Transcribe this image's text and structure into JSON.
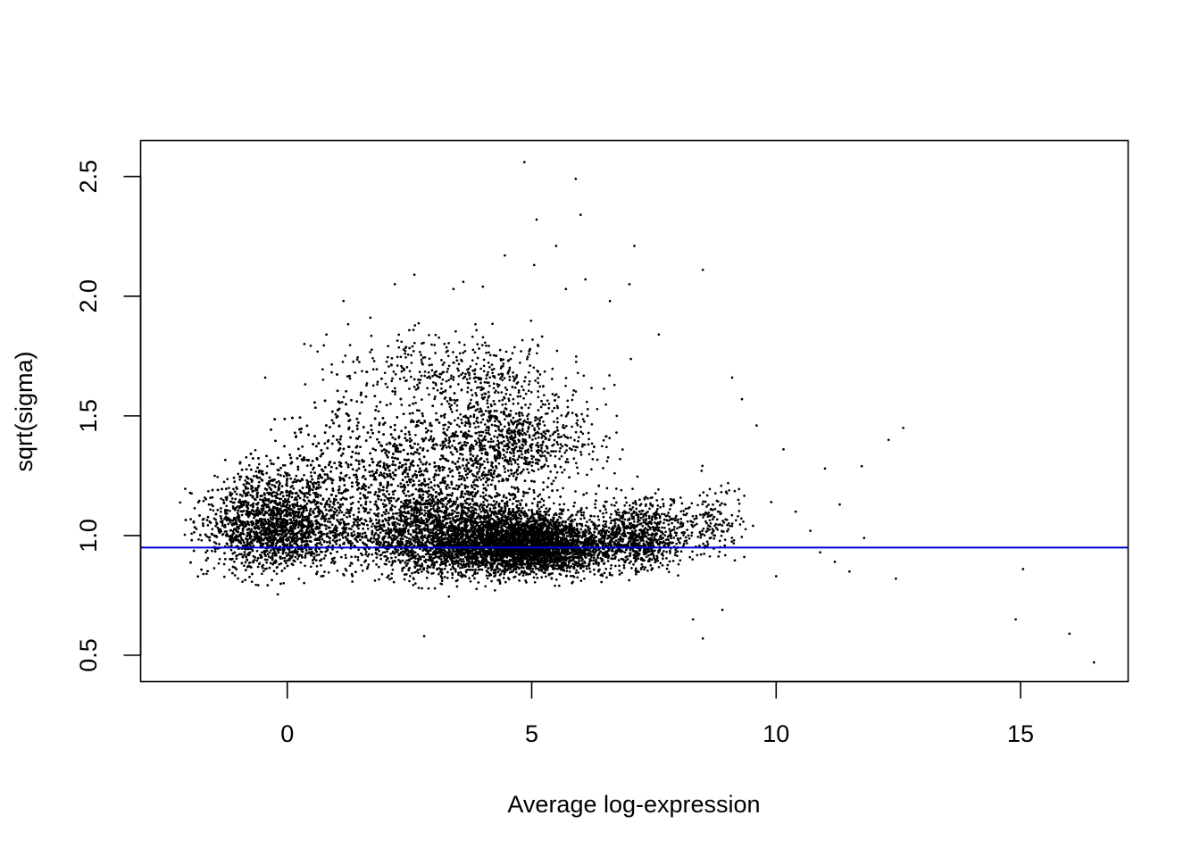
{
  "chart_data": {
    "type": "scatter",
    "title": "",
    "xlabel": "Average log-expression",
    "ylabel": "sqrt(sigma)",
    "xlim": [
      -3.0,
      17.2
    ],
    "ylim": [
      0.39,
      2.65
    ],
    "x_ticks": [
      0,
      5,
      10,
      15
    ],
    "x_tick_labels": [
      "0",
      "5",
      "10",
      "15"
    ],
    "y_ticks": [
      0.5,
      1.0,
      1.5,
      2.0,
      2.5
    ],
    "y_tick_labels": [
      "0.5",
      "1.0",
      "1.5",
      "2.0",
      "2.5"
    ],
    "grid": false,
    "point_color": "#000000",
    "trend_line": {
      "y": 0.95,
      "color": "#0000cd"
    },
    "series": [
      {
        "points": [
          [
            4.85,
            2.56
          ],
          [
            5.9,
            2.49
          ],
          [
            6.0,
            2.34
          ],
          [
            5.1,
            2.32
          ],
          [
            5.5,
            2.21
          ],
          [
            7.1,
            2.21
          ],
          [
            4.45,
            2.17
          ],
          [
            8.5,
            2.11
          ],
          [
            5.05,
            2.13
          ],
          [
            2.6,
            2.09
          ],
          [
            2.2,
            2.05
          ],
          [
            6.1,
            2.07
          ],
          [
            7.0,
            2.05
          ],
          [
            1.15,
            1.98
          ],
          [
            12.6,
            1.45
          ],
          [
            12.3,
            1.4
          ],
          [
            9.6,
            1.46
          ],
          [
            10.15,
            1.36
          ],
          [
            11.0,
            1.28
          ],
          [
            11.75,
            1.29
          ],
          [
            11.3,
            1.13
          ],
          [
            11.5,
            0.85
          ],
          [
            12.45,
            0.82
          ],
          [
            11.2,
            0.89
          ],
          [
            10.9,
            0.93
          ],
          [
            15.05,
            0.86
          ],
          [
            14.9,
            0.65
          ],
          [
            16.0,
            0.59
          ],
          [
            16.5,
            0.47
          ],
          [
            8.5,
            0.57
          ],
          [
            8.3,
            0.65
          ],
          [
            2.8,
            0.58
          ],
          [
            -0.45,
            1.66
          ],
          [
            0.35,
            1.8
          ],
          [
            0.8,
            1.84
          ],
          [
            1.7,
            1.91
          ],
          [
            3.6,
            2.06
          ],
          [
            4.0,
            2.04
          ],
          [
            3.4,
            2.03
          ],
          [
            9.1,
            1.66
          ],
          [
            9.3,
            1.57
          ],
          [
            7.6,
            1.84
          ],
          [
            6.6,
            1.98
          ],
          [
            5.7,
            2.03
          ],
          [
            10.4,
            1.1
          ],
          [
            10.7,
            1.02
          ],
          [
            11.8,
            0.99
          ],
          [
            10.0,
            0.83
          ],
          [
            9.9,
            1.14
          ],
          [
            8.9,
            0.69
          ]
        ]
      }
    ],
    "density_regions": [
      {
        "x_center": 5.0,
        "y_center": 0.92,
        "x_spread": 1.3,
        "y_spread": 0.14,
        "count": 3200
      },
      {
        "x_center": 3.3,
        "y_center": 0.95,
        "x_spread": 1.8,
        "y_spread": 0.2,
        "count": 2600
      },
      {
        "x_center": -0.2,
        "y_center": 0.98,
        "x_spread": 1.3,
        "y_spread": 0.22,
        "count": 2600
      },
      {
        "x_center": 2.2,
        "y_center": 1.2,
        "x_spread": 2.4,
        "y_spread": 0.3,
        "count": 2200
      },
      {
        "x_center": 4.5,
        "y_center": 1.35,
        "x_spread": 1.6,
        "y_spread": 0.22,
        "count": 900
      },
      {
        "x_center": 7.2,
        "y_center": 0.95,
        "x_spread": 0.9,
        "y_spread": 0.16,
        "count": 900
      },
      {
        "x_center": 8.7,
        "y_center": 1.0,
        "x_spread": 0.6,
        "y_spread": 0.17,
        "count": 160
      },
      {
        "x_center": 3.5,
        "y_center": 1.65,
        "x_spread": 2.0,
        "y_spread": 0.16,
        "count": 350
      }
    ]
  }
}
